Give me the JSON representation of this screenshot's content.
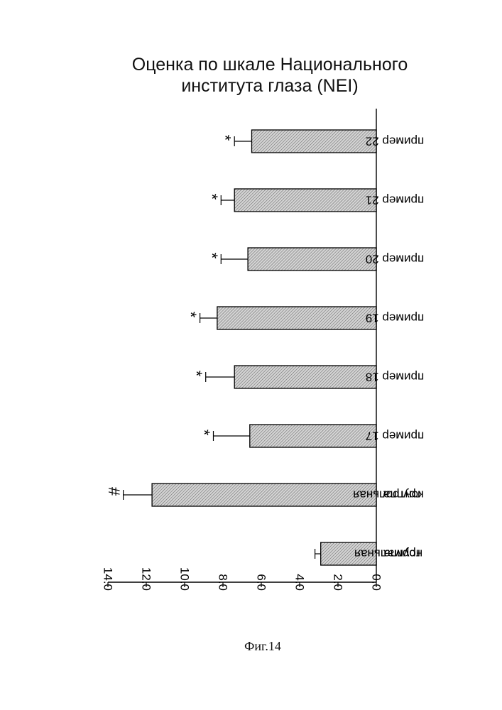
{
  "chart_data": {
    "type": "bar",
    "orientation": "horizontal",
    "title_lines": [
      "Оценка по шкале Национального",
      "института глаза (NEI)"
    ],
    "categories": [
      [
        "нормальная",
        "группа"
      ],
      [
        "контрольная",
        "группа"
      ],
      [
        "пример 17"
      ],
      [
        "пример 18"
      ],
      [
        "пример 19"
      ],
      [
        "пример 20"
      ],
      [
        "пример 21"
      ],
      [
        "пример 22"
      ]
    ],
    "values": [
      2.9,
      11.7,
      6.6,
      7.4,
      8.3,
      6.7,
      7.4,
      6.5
    ],
    "errors": [
      0.3,
      1.5,
      1.9,
      1.5,
      0.9,
      1.4,
      0.7,
      0.9
    ],
    "markers": [
      "",
      "#",
      "*",
      "*",
      "*",
      "*",
      "*",
      "*"
    ],
    "axis": {
      "min": 0,
      "max": 14,
      "ticks": [
        "0.0",
        "2.0",
        "4.0",
        "6.0",
        "8.0",
        "10.0",
        "12.0",
        "14.0"
      ]
    },
    "grid": false,
    "legend": "none",
    "bar_fill": "hatched"
  },
  "caption": "Фиг.14"
}
